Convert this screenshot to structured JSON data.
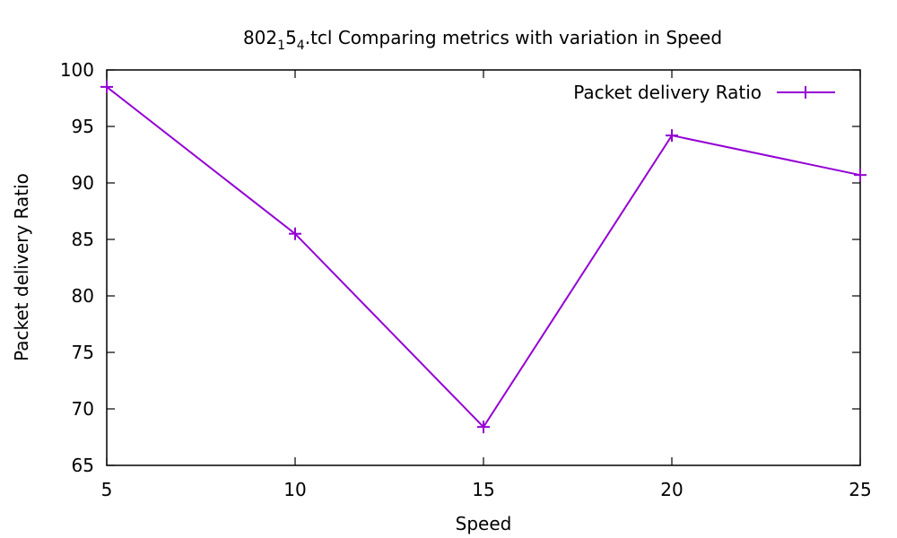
{
  "chart_data": {
    "type": "line",
    "title_base": "802",
    "title_sub1": "1",
    "title_mid": "5",
    "title_sub2": "4",
    "title_rest": ".tcl Comparing metrics with variation in Speed",
    "xlabel": "Speed",
    "ylabel": "Packet delivery Ratio",
    "xlim": [
      5,
      25
    ],
    "ylim": [
      65,
      100
    ],
    "x_ticks": [
      "5",
      "10",
      "15",
      "20",
      "25"
    ],
    "y_ticks": [
      "65",
      "70",
      "75",
      "80",
      "85",
      "90",
      "95",
      "100"
    ],
    "grid": false,
    "legend_position": "top-right",
    "series": [
      {
        "name": "Packet delivery Ratio",
        "color": "#9400d3",
        "marker": "plus",
        "x": [
          5,
          10,
          15,
          20,
          25
        ],
        "y": [
          98.5,
          85.5,
          68.4,
          94.2,
          90.7
        ]
      }
    ]
  }
}
